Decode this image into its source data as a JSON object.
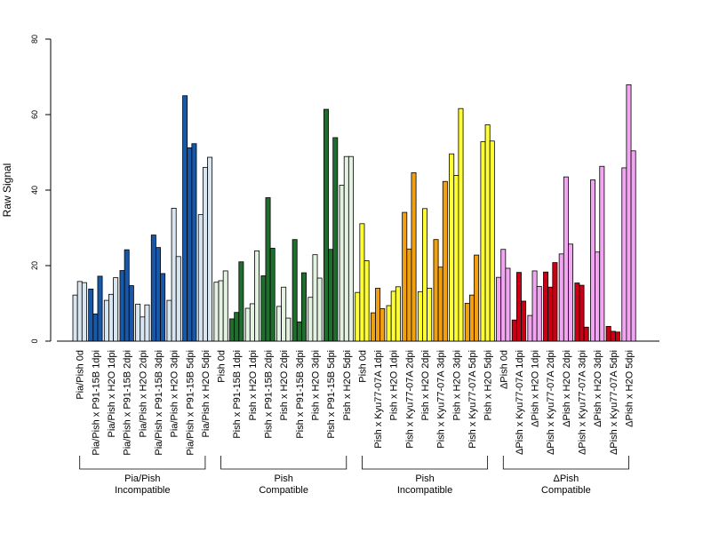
{
  "chart_data": {
    "type": "bar",
    "ylabel": "Raw Signal",
    "ylim": [
      0,
      80
    ],
    "yticks": [
      0,
      20,
      40,
      60,
      80
    ],
    "bar_border": "#000000",
    "groups": [
      {
        "label_line1": "Pia/Pish",
        "label_line2": "Incompatible",
        "dark_color": "#1858a8",
        "light_color": "#d8e6f2",
        "categories": [
          {
            "label": "Pia/Pish 0d",
            "color": "light",
            "values": [
              12.2,
              15.8,
              15.5
            ]
          },
          {
            "label": "Pia/Pish x P91-15B 1dpi",
            "color": "dark",
            "values": [
              13.8,
              7.2,
              17.2
            ]
          },
          {
            "label": "Pia/Pish x H2O 1dpi",
            "color": "light",
            "values": [
              10.8,
              12.4,
              16.8
            ]
          },
          {
            "label": "Pia/Pish x P91-15B 2dpi",
            "color": "dark",
            "values": [
              18.7,
              24.2,
              14.7
            ]
          },
          {
            "label": "Pia/Pish x H2O 2dpi",
            "color": "light",
            "values": [
              9.8,
              6.4,
              9.6
            ]
          },
          {
            "label": "Pia/Pish x P91-15B 3dpi",
            "color": "dark",
            "values": [
              28.1,
              24.8,
              17.9
            ]
          },
          {
            "label": "Pia/Pish x H2O 3dpi",
            "color": "light",
            "values": [
              10.8,
              35.2,
              22.4
            ]
          },
          {
            "label": "Pia/Pish x P91-15B 5dpi",
            "color": "dark",
            "values": [
              65.0,
              51.2,
              52.3
            ]
          },
          {
            "label": "Pia/Pish x H2O 5dpi",
            "color": "light",
            "values": [
              33.5,
              46.0,
              48.7
            ]
          }
        ]
      },
      {
        "label_line1": "Pish",
        "label_line2": "Compatible",
        "dark_color": "#1f6e2e",
        "light_color": "#e3f2e1",
        "categories": [
          {
            "label": "Pish 0d",
            "color": "light",
            "values": [
              15.6,
              16.0,
              18.6
            ]
          },
          {
            "label": "Pish x P91-15B 1dpi",
            "color": "dark",
            "values": [
              5.9,
              7.6,
              21.0
            ]
          },
          {
            "label": "Pish x H2O 1dpi",
            "color": "light",
            "values": [
              8.7,
              9.9,
              23.9
            ]
          },
          {
            "label": "Pish x P91-15B 2dpi",
            "color": "dark",
            "values": [
              17.3,
              38.0,
              24.6
            ]
          },
          {
            "label": "Pish x H2O 2dpi",
            "color": "light",
            "values": [
              9.2,
              14.3,
              6.1
            ]
          },
          {
            "label": "Pish x P91-15B 3dpi",
            "color": "dark",
            "values": [
              26.9,
              5.1,
              18.1
            ]
          },
          {
            "label": "Pish x H2O 3dpi",
            "color": "light",
            "values": [
              11.6,
              22.9,
              16.7
            ]
          },
          {
            "label": "Pish x P91-15B 5dpi",
            "color": "dark",
            "values": [
              61.4,
              24.3,
              53.9
            ]
          },
          {
            "label": "Pish x H2O 5dpi",
            "color": "light",
            "values": [
              41.3,
              48.9,
              48.9
            ]
          }
        ]
      },
      {
        "label_line1": "Pish",
        "label_line2": "Incompatible",
        "dark_color": "#f0a010",
        "light_color": "#ffff33",
        "categories": [
          {
            "label": "Pish 0d",
            "color": "light",
            "values": [
              12.9,
              31.1,
              21.3
            ]
          },
          {
            "label": "Pish x Kyu77-07A 1dpi",
            "color": "dark",
            "values": [
              7.5,
              14.0,
              8.6
            ]
          },
          {
            "label": "Pish x H2O 1dpi",
            "color": "light",
            "values": [
              9.4,
              13.2,
              14.4
            ]
          },
          {
            "label": "Pish x Kyu77-07A 2dpi",
            "color": "dark",
            "values": [
              34.1,
              24.4,
              44.6
            ]
          },
          {
            "label": "Pish x H2O 2dpi",
            "color": "light",
            "values": [
              13.1,
              35.1,
              14.0
            ]
          },
          {
            "label": "Pish x Kyu77-07A 3dpi",
            "color": "dark",
            "values": [
              26.9,
              19.6,
              42.3
            ]
          },
          {
            "label": "Pish x H2O 3dpi",
            "color": "light",
            "values": [
              49.6,
              43.9,
              61.6
            ]
          },
          {
            "label": "Pish x Kyu77-07A 5dpi",
            "color": "dark",
            "values": [
              10.0,
              12.2,
              22.8
            ]
          },
          {
            "label": "Pish x H2O 5dpi",
            "color": "light",
            "values": [
              52.8,
              57.3,
              53.0
            ]
          }
        ]
      },
      {
        "label_line1": "ΔPish",
        "label_line2": "Compatible",
        "dark_color": "#cc0014",
        "light_color": "#f2a6f2",
        "categories": [
          {
            "label": "ΔPish 0d",
            "color": "light",
            "values": [
              16.9,
              24.3,
              19.3
            ]
          },
          {
            "label": "ΔPish x Kyu77-07A 1dpi",
            "color": "dark",
            "values": [
              5.6,
              18.2,
              10.6
            ]
          },
          {
            "label": "ΔPish x H2O 1dpi",
            "color": "light",
            "values": [
              6.8,
              18.6,
              14.5
            ]
          },
          {
            "label": "ΔPish x Kyu77-07A 2dpi",
            "color": "dark",
            "values": [
              18.3,
              14.3,
              20.8
            ]
          },
          {
            "label": "ΔPish x H2O 2dpi",
            "color": "light",
            "values": [
              23.1,
              43.5,
              25.7
            ]
          },
          {
            "label": "ΔPish x Kyu77-07A 3dpi",
            "color": "dark",
            "values": [
              15.4,
              14.8,
              3.7
            ]
          },
          {
            "label": "ΔPish x H2O 3dpi",
            "color": "light",
            "values": [
              42.7,
              23.6,
              46.3
            ]
          },
          {
            "label": "ΔPish x Kyu77-07A 5dpi",
            "color": "dark",
            "values": [
              3.9,
              2.6,
              2.4
            ]
          },
          {
            "label": "ΔPish x H2O 5dpi",
            "color": "light",
            "values": [
              45.9,
              67.9,
              50.4
            ]
          }
        ]
      }
    ]
  }
}
